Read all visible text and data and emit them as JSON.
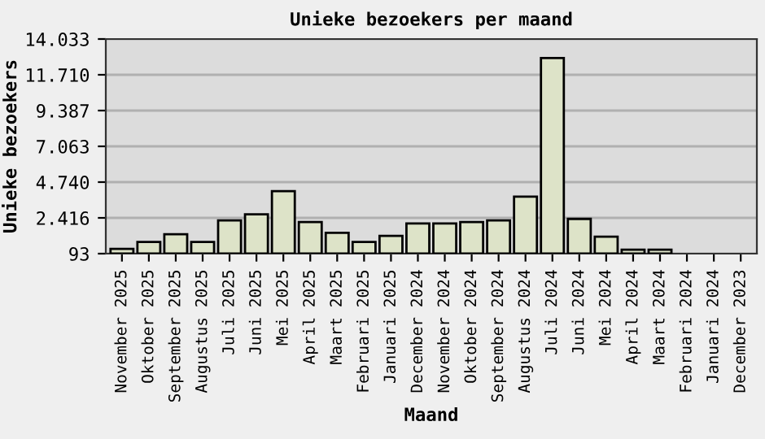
{
  "chart_data": {
    "type": "bar",
    "title": "Unieke bezoekers per maand",
    "xlabel": "Maand",
    "ylabel": "Unieke bezoekers",
    "categories": [
      "November 2025",
      "Oktober 2025",
      "September 2025",
      "Augustus 2025",
      "Juli 2025",
      "Juni 2025",
      "Mei 2025",
      "April 2025",
      "Maart 2025",
      "Februari 2025",
      "Januari 2025",
      "December 2024",
      "November 2024",
      "Oktober 2024",
      "September 2024",
      "Augustus 2024",
      "Juli 2024",
      "Juni 2024",
      "Mei 2024",
      "April 2024",
      "Maart 2024",
      "Februari 2024",
      "Januari 2024",
      "December 2023"
    ],
    "values": [
      400,
      850,
      1350,
      850,
      2250,
      2650,
      4150,
      2150,
      1450,
      850,
      1250,
      2050,
      2050,
      2150,
      2250,
      3800,
      12800,
      2350,
      1200,
      350,
      350,
      null,
      null,
      null
    ],
    "color": "#dde3c8",
    "ylim": [
      93,
      14033
    ],
    "yticks": [
      {
        "value": 93,
        "label": "93"
      },
      {
        "value": 2416,
        "label": "2.416"
      },
      {
        "value": 4740,
        "label": "4.740"
      },
      {
        "value": 7063,
        "label": "7.063"
      },
      {
        "value": 9387,
        "label": "9.387"
      },
      {
        "value": 11710,
        "label": "11.710"
      },
      {
        "value": 14033,
        "label": "14.033"
      }
    ],
    "grid": "y"
  }
}
